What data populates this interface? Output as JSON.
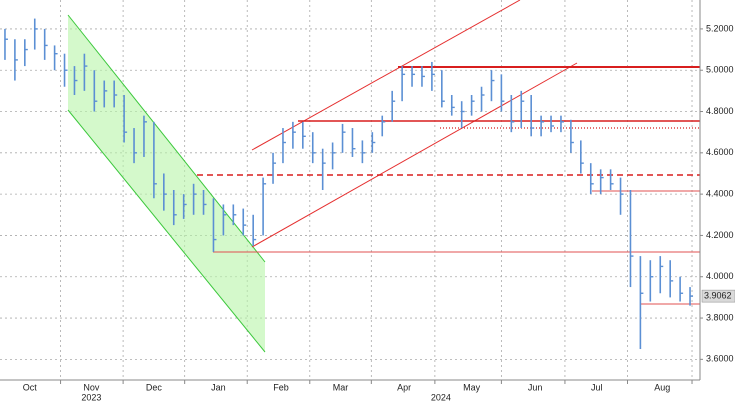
{
  "chart_data": {
    "type": "hlc",
    "color": "#5b8fd4",
    "grid": true,
    "xlim": [
      -0.5,
      69.5
    ],
    "ylim": [
      3.5,
      5.34
    ],
    "yticks": [
      {
        "value": 3.6,
        "label": "3.6000"
      },
      {
        "value": 3.8,
        "label": "3.8000"
      },
      {
        "value": 4.0,
        "label": "4.0000"
      },
      {
        "value": 4.2,
        "label": "4.2000"
      },
      {
        "value": 4.4,
        "label": "4.4000"
      },
      {
        "value": 4.6,
        "label": "4.6000"
      },
      {
        "value": 4.8,
        "label": "4.8000"
      },
      {
        "value": 5.0,
        "label": "5.0000"
      },
      {
        "value": 5.2,
        "label": "5.2000"
      }
    ],
    "xticks": [
      {
        "value": 2.5,
        "label": "Oct"
      },
      {
        "value": 8.7,
        "label": "Nov"
      },
      {
        "value": 15,
        "label": "Dec"
      },
      {
        "value": 21.5,
        "label": "Jan"
      },
      {
        "value": 27.8,
        "label": "Feb"
      },
      {
        "value": 33.8,
        "label": "Mar"
      },
      {
        "value": 40.2,
        "label": "Apr"
      },
      {
        "value": 47,
        "label": "May"
      },
      {
        "value": 53.4,
        "label": "Jun"
      },
      {
        "value": 59.6,
        "label": "Jul"
      },
      {
        "value": 66.2,
        "label": "Aug"
      }
    ],
    "year_labels": [
      {
        "value": 8.7,
        "label": "2023"
      },
      {
        "value": 43.9,
        "label": "2024"
      }
    ],
    "xgrid": [
      5.6,
      11.9,
      18.1,
      24.4,
      30.7,
      36.9,
      43.3,
      50,
      56.4,
      62.7,
      69.2
    ],
    "high": [
      5.2,
      5.15,
      5.15,
      5.25,
      5.2,
      5.12,
      5.08,
      5.02,
      5.08,
      5.0,
      4.95,
      4.95,
      4.88,
      4.72,
      4.78,
      4.75,
      4.5,
      4.42,
      4.4,
      4.45,
      4.42,
      4.38,
      4.35,
      4.35,
      4.33,
      4.3,
      4.48,
      4.6,
      4.72,
      4.75,
      4.75,
      4.7,
      4.62,
      4.65,
      4.74,
      4.72,
      4.66,
      4.7,
      4.78,
      4.9,
      5.02,
      5.02,
      5.02,
      5.04,
      5.0,
      4.88,
      4.85,
      4.88,
      4.92,
      5.0,
      4.98,
      4.88,
      4.9,
      4.88,
      4.78,
      4.78,
      4.78,
      4.76,
      4.66,
      4.55,
      4.52,
      4.52,
      4.48,
      4.42,
      4.1,
      4.08,
      4.1,
      4.08,
      4.0,
      3.95
    ],
    "low": [
      5.05,
      4.95,
      5.02,
      5.1,
      5.05,
      5.0,
      4.92,
      4.88,
      4.9,
      4.8,
      4.82,
      4.82,
      4.65,
      4.55,
      4.58,
      4.38,
      4.32,
      4.25,
      4.28,
      4.3,
      4.3,
      4.12,
      4.2,
      4.25,
      4.2,
      4.15,
      4.2,
      4.45,
      4.55,
      4.62,
      4.62,
      4.55,
      4.42,
      4.52,
      4.6,
      4.58,
      4.55,
      4.6,
      4.68,
      4.75,
      4.85,
      4.92,
      4.92,
      4.9,
      4.82,
      4.78,
      4.72,
      4.78,
      4.8,
      4.85,
      4.8,
      4.7,
      4.72,
      4.68,
      4.68,
      4.7,
      4.7,
      4.6,
      4.5,
      4.4,
      4.4,
      4.42,
      4.3,
      3.95,
      3.65,
      3.88,
      3.92,
      3.9,
      3.88,
      3.86
    ],
    "close": [
      5.15,
      5.05,
      5.1,
      5.2,
      5.12,
      5.08,
      5.0,
      4.95,
      5.02,
      4.85,
      4.9,
      4.88,
      4.7,
      4.6,
      4.75,
      4.45,
      4.4,
      4.3,
      4.35,
      4.4,
      4.35,
      4.18,
      4.3,
      4.3,
      4.25,
      4.18,
      4.45,
      4.55,
      4.65,
      4.7,
      4.68,
      4.6,
      4.55,
      4.6,
      4.7,
      4.62,
      4.6,
      4.65,
      4.75,
      4.85,
      4.98,
      4.98,
      4.97,
      4.98,
      4.85,
      4.82,
      4.8,
      4.85,
      4.88,
      4.95,
      4.85,
      4.75,
      4.85,
      4.72,
      4.75,
      4.73,
      4.75,
      4.65,
      4.55,
      4.45,
      4.48,
      4.45,
      4.4,
      4.1,
      3.92,
      4.0,
      4.05,
      3.98,
      3.92,
      3.9062
    ]
  }
}
